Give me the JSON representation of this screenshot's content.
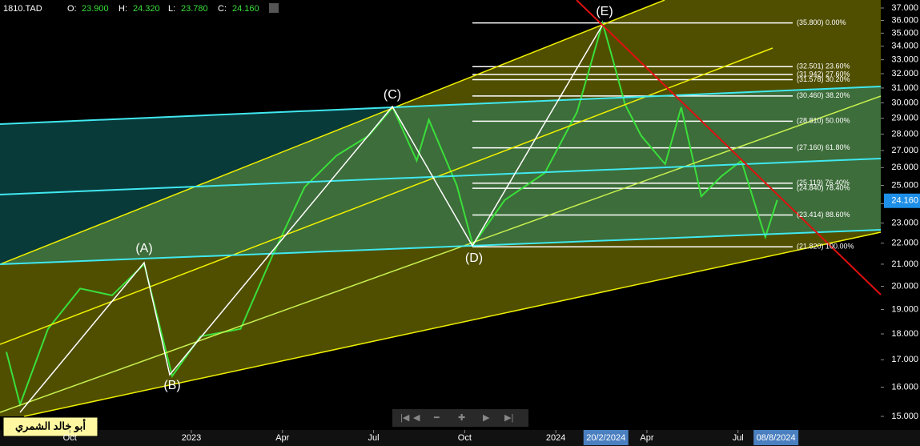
{
  "chart_data": {
    "type": "line",
    "header": {
      "symbol": "1810.TAD",
      "open_label": "O:",
      "open": "23.900",
      "high_label": "H:",
      "high": "24.320",
      "low_label": "L:",
      "low": "23.780",
      "close_label": "C:",
      "close": "24.160"
    },
    "x": [
      -2.09,
      -1.64,
      -0.72,
      0.34,
      1.39,
      2.45,
      2.98,
      3.37,
      4.3,
      5.62,
      6.67,
      7.73,
      8.78,
      9.84,
      10.63,
      11.42,
      11.82,
      12.74,
      13.27,
      14.32,
      15.64,
      16.7,
      17.54,
      17.88,
      18.28,
      18.81,
      19.6,
      20.13,
      20.79,
      21.45,
      22.11,
      22.77,
      22.9,
      23.29
    ],
    "series": [
      {
        "color": "#3adf3a",
        "values": [
          17.3,
          15.4,
          18.2,
          19.9,
          19.6,
          21.0,
          18.2,
          16.4,
          17.9,
          18.2,
          21.4,
          24.9,
          26.7,
          27.9,
          29.7,
          26.4,
          28.9,
          25.0,
          21.9,
          24.2,
          25.7,
          29.4,
          35.8,
          33.0,
          29.9,
          27.9,
          26.2,
          29.7,
          24.4,
          25.5,
          26.4,
          22.9,
          22.3,
          24.2
        ]
      }
    ],
    "xlim": [
      -2.3,
      26.7
    ],
    "xticks": [
      {
        "value": 0,
        "label": "Oct"
      },
      {
        "value": 4,
        "label": "2023"
      },
      {
        "value": 7,
        "label": "Apr"
      },
      {
        "value": 10,
        "label": "Jul"
      },
      {
        "value": 13,
        "label": "Oct"
      },
      {
        "value": 16,
        "label": "2024"
      },
      {
        "value": 19,
        "label": "Apr"
      },
      {
        "value": 22,
        "label": "Jul"
      }
    ],
    "x_markers": [
      {
        "value": 17.65,
        "label": "20/2/2024"
      },
      {
        "value": 23.25,
        "label": "08/8/2024"
      }
    ],
    "ylim": [
      15,
      37
    ],
    "log_scale": true,
    "yticks": [
      {
        "value": 15,
        "label": "15.000"
      },
      {
        "value": 16,
        "label": "16.000"
      },
      {
        "value": 17,
        "label": "17.000"
      },
      {
        "value": 18,
        "label": "18.000"
      },
      {
        "value": 19,
        "label": "19.000"
      },
      {
        "value": 20,
        "label": "20.000"
      },
      {
        "value": 21,
        "label": "21.000"
      },
      {
        "value": 22,
        "label": "22.000"
      },
      {
        "value": 23,
        "label": "23.000"
      },
      {
        "value": 24,
        "label": "24.000"
      },
      {
        "value": 25,
        "label": "25.000"
      },
      {
        "value": 26,
        "label": "26.000"
      },
      {
        "value": 27,
        "label": "27.000"
      },
      {
        "value": 28,
        "label": "28.000"
      },
      {
        "value": 29,
        "label": "29.000"
      },
      {
        "value": 30,
        "label": "30.000"
      },
      {
        "value": 31,
        "label": "31.000"
      },
      {
        "value": 32,
        "label": "32.000"
      },
      {
        "value": 33,
        "label": "33.000"
      },
      {
        "value": 34,
        "label": "34.000"
      },
      {
        "value": 35,
        "label": "35.000"
      },
      {
        "value": 36,
        "label": "36.000"
      },
      {
        "value": 37,
        "label": "37.000"
      }
    ],
    "last_price": {
      "value": 24.16,
      "label": "24.160"
    },
    "fib_levels": [
      {
        "value": 35.8,
        "label": "(35.800) 0.00%"
      },
      {
        "value": 32.501,
        "label": "(32.501) 23.60%"
      },
      {
        "value": 31.942,
        "label": "(31.942) 27.60%"
      },
      {
        "value": 31.578,
        "label": "(31.578) 30.20%"
      },
      {
        "value": 30.46,
        "label": "(30.460) 38.20%"
      },
      {
        "value": 28.81,
        "label": "(28.810) 50.00%"
      },
      {
        "value": 27.16,
        "label": "(27.160) 61.80%"
      },
      {
        "value": 25.119,
        "label": "(25.119) 76.40%"
      },
      {
        "value": 24.84,
        "label": "(24.840) 78.40%"
      },
      {
        "value": 23.414,
        "label": "(23.414) 88.60%"
      },
      {
        "value": 21.82,
        "label": "(21.820) 100.00%"
      }
    ],
    "wave_labels": [
      "(A)",
      "(B)",
      "(C)",
      "(D)",
      "(E)"
    ],
    "watermark": "أبو خالد الشمري"
  }
}
